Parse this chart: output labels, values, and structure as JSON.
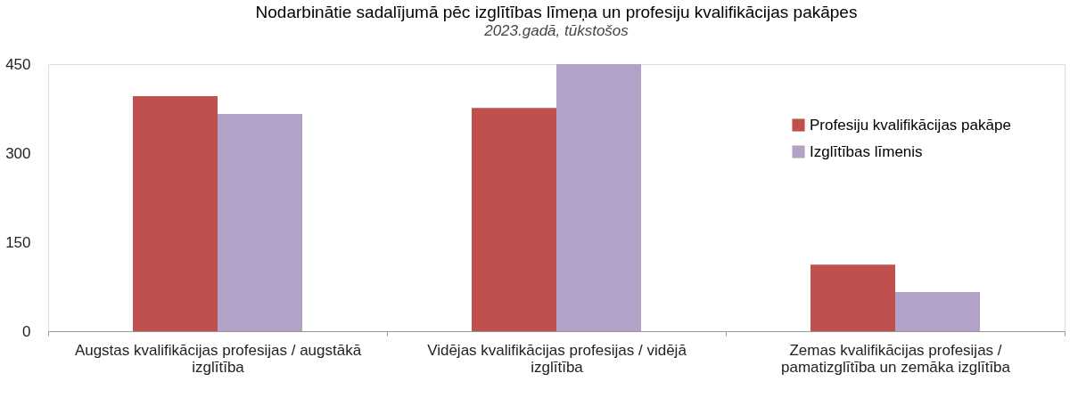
{
  "chart_data": {
    "type": "bar",
    "title": "Nodarbinātie sadalījumā pēc izglītības līmeņa un profesiju kvalifikācijas pakāpes",
    "subtitle": "2023.gadā, tūkstošos",
    "categories": [
      "Augstas kvalifikācijas profesijas / augstākā izglītība",
      "Vidējas kvalifikācijas profesijas / vidējā izglītība",
      "Zemas kvalifikācijas profesijas / pamatizglītība un zemāka izglītība"
    ],
    "series": [
      {
        "name": "Profesiju kvalifikācijas pakāpe",
        "color": "#c0504d",
        "values": [
          396,
          376,
          112
        ]
      },
      {
        "name": "Izglītības līmenis",
        "color": "#b2a2c7",
        "values": [
          366,
          450,
          66
        ]
      }
    ],
    "ylim": [
      0,
      450
    ],
    "yticks": [
      0,
      150,
      300,
      450
    ],
    "grid": false,
    "legend": "top right"
  }
}
